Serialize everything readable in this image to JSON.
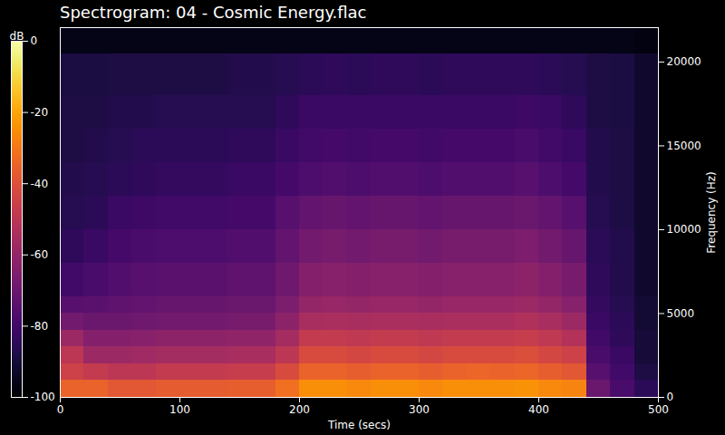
{
  "chart_data": {
    "type": "heatmap",
    "title": "Spectrogram: 04 - Cosmic Energy.flac",
    "x_label": "Time (secs)",
    "y_label": "Frequency (Hz)",
    "xlim": [
      0,
      500
    ],
    "xticks": [
      0,
      100,
      200,
      300,
      400,
      500
    ],
    "ylim": [
      0,
      22050
    ],
    "yticks": [
      0,
      5000,
      10000,
      15000,
      20000
    ],
    "color": "inferno",
    "time_bins": [
      0,
      20,
      40,
      60,
      80,
      100,
      120,
      140,
      160,
      180,
      200,
      220,
      240,
      260,
      280,
      300,
      320,
      340,
      360,
      380,
      400,
      420,
      440,
      460,
      480,
      500
    ],
    "freq_bins": [
      0,
      1000,
      2000,
      3000,
      4000,
      5000,
      6000,
      8000,
      10000,
      12000,
      14000,
      16000,
      18000,
      20500,
      22050
    ],
    "values": [
      [
        -35,
        -35,
        -38,
        -38,
        -37,
        -37,
        -37,
        -36,
        -36,
        -32,
        -25,
        -25,
        -26,
        -25,
        -25,
        -26,
        -25,
        -25,
        -25,
        -24,
        -26,
        -27,
        -70,
        -78,
        -85
      ],
      [
        -45,
        -48,
        -50,
        -50,
        -48,
        -48,
        -48,
        -47,
        -47,
        -42,
        -35,
        -35,
        -36,
        -35,
        -35,
        -36,
        -35,
        -34,
        -35,
        -34,
        -36,
        -38,
        -75,
        -80,
        -88
      ],
      [
        -50,
        -58,
        -58,
        -57,
        -56,
        -56,
        -56,
        -55,
        -55,
        -50,
        -42,
        -42,
        -43,
        -42,
        -42,
        -43,
        -42,
        -42,
        -42,
        -41,
        -43,
        -45,
        -78,
        -82,
        -90
      ],
      [
        -58,
        -64,
        -64,
        -63,
        -62,
        -62,
        -62,
        -61,
        -61,
        -56,
        -48,
        -48,
        -49,
        -48,
        -48,
        -49,
        -48,
        -48,
        -48,
        -47,
        -49,
        -52,
        -80,
        -84,
        -90
      ],
      [
        -68,
        -70,
        -70,
        -69,
        -68,
        -68,
        -68,
        -67,
        -67,
        -62,
        -55,
        -54,
        -55,
        -54,
        -54,
        -55,
        -54,
        -54,
        -54,
        -53,
        -55,
        -58,
        -82,
        -85,
        -91
      ],
      [
        -75,
        -74,
        -73,
        -72,
        -71,
        -71,
        -71,
        -70,
        -70,
        -66,
        -60,
        -59,
        -60,
        -59,
        -59,
        -60,
        -59,
        -59,
        -59,
        -58,
        -60,
        -63,
        -83,
        -86,
        -91
      ],
      [
        -80,
        -78,
        -76,
        -75,
        -74,
        -74,
        -74,
        -73,
        -73,
        -69,
        -64,
        -63,
        -64,
        -63,
        -63,
        -64,
        -63,
        -63,
        -63,
        -62,
        -64,
        -67,
        -84,
        -87,
        -92
      ],
      [
        -84,
        -82,
        -79,
        -78,
        -77,
        -77,
        -77,
        -76,
        -76,
        -72,
        -68,
        -67,
        -68,
        -67,
        -67,
        -68,
        -67,
        -67,
        -67,
        -66,
        -68,
        -71,
        -85,
        -87,
        -92
      ],
      [
        -86,
        -85,
        -82,
        -81,
        -80,
        -80,
        -80,
        -79,
        -79,
        -75,
        -72,
        -71,
        -72,
        -71,
        -71,
        -72,
        -71,
        -71,
        -71,
        -70,
        -72,
        -75,
        -86,
        -88,
        -92
      ],
      [
        -87,
        -86,
        -85,
        -84,
        -83,
        -83,
        -83,
        -82,
        -82,
        -79,
        -77,
        -76,
        -77,
        -76,
        -76,
        -77,
        -76,
        -76,
        -76,
        -75,
        -77,
        -79,
        -87,
        -88,
        -92
      ],
      [
        -88,
        -87,
        -86,
        -85,
        -85,
        -85,
        -85,
        -84,
        -84,
        -82,
        -80,
        -79,
        -80,
        -79,
        -79,
        -80,
        -79,
        -79,
        -79,
        -78,
        -80,
        -82,
        -87,
        -88,
        -92
      ],
      [
        -88,
        -88,
        -87,
        -87,
        -86,
        -86,
        -86,
        -86,
        -86,
        -84,
        -82,
        -82,
        -82,
        -82,
        -82,
        -82,
        -82,
        -82,
        -82,
        -81,
        -82,
        -84,
        -88,
        -89,
        -92
      ],
      [
        -89,
        -89,
        -88,
        -88,
        -88,
        -88,
        -88,
        -87,
        -87,
        -86,
        -85,
        -84,
        -85,
        -84,
        -84,
        -85,
        -84,
        -84,
        -84,
        -84,
        -85,
        -86,
        -88,
        -89,
        -92
      ],
      [
        -96,
        -96,
        -96,
        -96,
        -96,
        -96,
        -96,
        -96,
        -96,
        -96,
        -96,
        -96,
        -96,
        -96,
        -96,
        -96,
        -96,
        -96,
        -96,
        -96,
        -96,
        -96,
        -96,
        -96,
        -97
      ]
    ],
    "colorbar": {
      "label": "dB",
      "range": [
        -100,
        0
      ],
      "ticks": [
        0,
        -20,
        -40,
        -60,
        -80,
        -100
      ]
    }
  }
}
